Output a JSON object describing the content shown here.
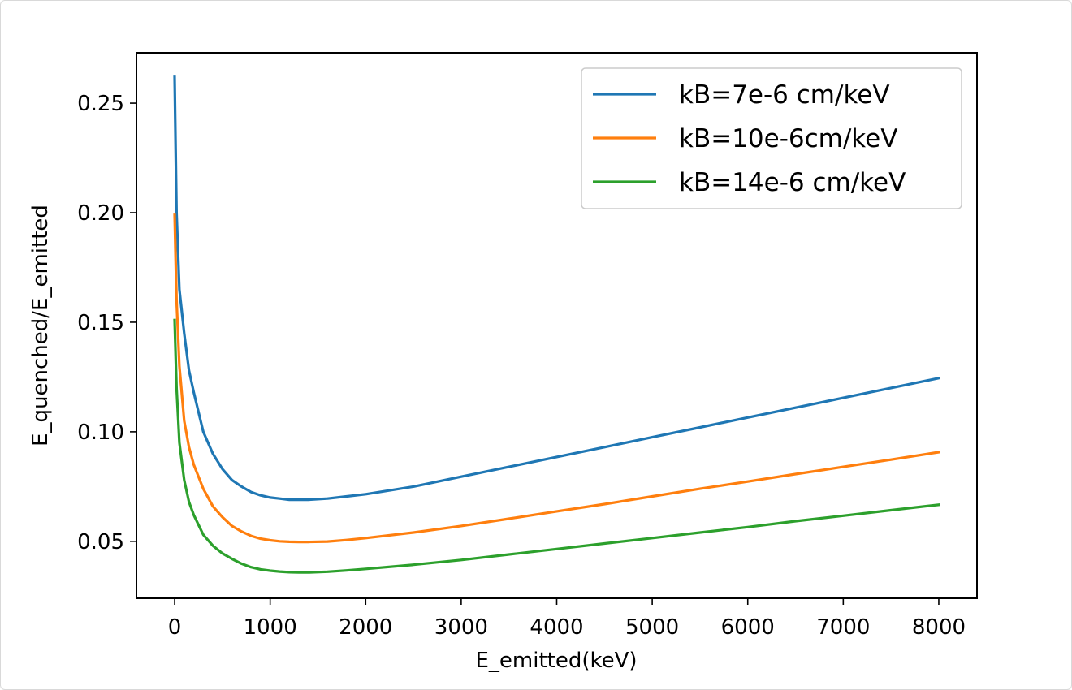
{
  "chart_data": {
    "type": "line",
    "title": "",
    "xlabel": "E_emitted(keV)",
    "ylabel": "E_quenched/E_emitted",
    "xlim": [
      -400,
      8400
    ],
    "ylim": [
      0.024,
      0.273
    ],
    "xticks": [
      0,
      1000,
      2000,
      3000,
      4000,
      5000,
      6000,
      7000,
      8000
    ],
    "xtick_labels": [
      "0",
      "1000",
      "2000",
      "3000",
      "4000",
      "5000",
      "6000",
      "7000",
      "8000"
    ],
    "yticks": [
      0.05,
      0.1,
      0.15,
      0.2,
      0.25
    ],
    "ytick_labels": [
      "0.05",
      "0.10",
      "0.15",
      "0.20",
      "0.25"
    ],
    "grid": false,
    "legend_position": "top-right",
    "series": [
      {
        "name": "kB=7e-6 cm/keV",
        "color": "#1f77b4",
        "points": [
          [
            0,
            0.262
          ],
          [
            20,
            0.2
          ],
          [
            50,
            0.165
          ],
          [
            100,
            0.145
          ],
          [
            150,
            0.128
          ],
          [
            200,
            0.118
          ],
          [
            300,
            0.1
          ],
          [
            400,
            0.09
          ],
          [
            500,
            0.083
          ],
          [
            600,
            0.078
          ],
          [
            700,
            0.075
          ],
          [
            800,
            0.0725
          ],
          [
            900,
            0.071
          ],
          [
            1000,
            0.07
          ],
          [
            1100,
            0.0695
          ],
          [
            1200,
            0.069
          ],
          [
            1300,
            0.069
          ],
          [
            1400,
            0.069
          ],
          [
            1600,
            0.0695
          ],
          [
            1800,
            0.0705
          ],
          [
            2000,
            0.0715
          ],
          [
            2500,
            0.075
          ],
          [
            3000,
            0.0795
          ],
          [
            3500,
            0.084
          ],
          [
            4000,
            0.0885
          ],
          [
            4500,
            0.093
          ],
          [
            5000,
            0.0975
          ],
          [
            5500,
            0.102
          ],
          [
            6000,
            0.1065
          ],
          [
            6500,
            0.111
          ],
          [
            7000,
            0.1155
          ],
          [
            7500,
            0.12
          ],
          [
            8000,
            0.1245
          ]
        ]
      },
      {
        "name": "kB=10e-6cm/keV",
        "color": "#ff7f0e",
        "points": [
          [
            0,
            0.199
          ],
          [
            20,
            0.16
          ],
          [
            50,
            0.13
          ],
          [
            100,
            0.105
          ],
          [
            150,
            0.093
          ],
          [
            200,
            0.085
          ],
          [
            300,
            0.074
          ],
          [
            400,
            0.066
          ],
          [
            500,
            0.061
          ],
          [
            600,
            0.057
          ],
          [
            700,
            0.0545
          ],
          [
            800,
            0.0525
          ],
          [
            900,
            0.0512
          ],
          [
            1000,
            0.0505
          ],
          [
            1100,
            0.05
          ],
          [
            1200,
            0.0498
          ],
          [
            1300,
            0.0497
          ],
          [
            1400,
            0.0497
          ],
          [
            1600,
            0.0499
          ],
          [
            1800,
            0.0506
          ],
          [
            2000,
            0.0515
          ],
          [
            2500,
            0.054
          ],
          [
            3000,
            0.057
          ],
          [
            3500,
            0.0603
          ],
          [
            4000,
            0.0637
          ],
          [
            4500,
            0.067
          ],
          [
            5000,
            0.0705
          ],
          [
            5500,
            0.074
          ],
          [
            6000,
            0.0773
          ],
          [
            6500,
            0.0807
          ],
          [
            7000,
            0.084
          ],
          [
            7500,
            0.0873
          ],
          [
            8000,
            0.0907
          ]
        ]
      },
      {
        "name": "kB=14e-6 cm/keV",
        "color": "#2ca02c",
        "points": [
          [
            0,
            0.151
          ],
          [
            20,
            0.12
          ],
          [
            50,
            0.095
          ],
          [
            100,
            0.078
          ],
          [
            150,
            0.068
          ],
          [
            200,
            0.062
          ],
          [
            300,
            0.053
          ],
          [
            400,
            0.048
          ],
          [
            500,
            0.0445
          ],
          [
            600,
            0.042
          ],
          [
            700,
            0.0398
          ],
          [
            800,
            0.0382
          ],
          [
            900,
            0.0372
          ],
          [
            1000,
            0.0366
          ],
          [
            1100,
            0.0362
          ],
          [
            1200,
            0.0359
          ],
          [
            1300,
            0.0358
          ],
          [
            1400,
            0.0358
          ],
          [
            1600,
            0.0361
          ],
          [
            1800,
            0.0367
          ],
          [
            2000,
            0.0374
          ],
          [
            2500,
            0.0393
          ],
          [
            3000,
            0.0415
          ],
          [
            3500,
            0.044
          ],
          [
            4000,
            0.0465
          ],
          [
            4500,
            0.049
          ],
          [
            5000,
            0.0515
          ],
          [
            5500,
            0.054
          ],
          [
            6000,
            0.0565
          ],
          [
            6500,
            0.0592
          ],
          [
            7000,
            0.0617
          ],
          [
            7500,
            0.0642
          ],
          [
            8000,
            0.0667
          ]
        ]
      }
    ]
  }
}
